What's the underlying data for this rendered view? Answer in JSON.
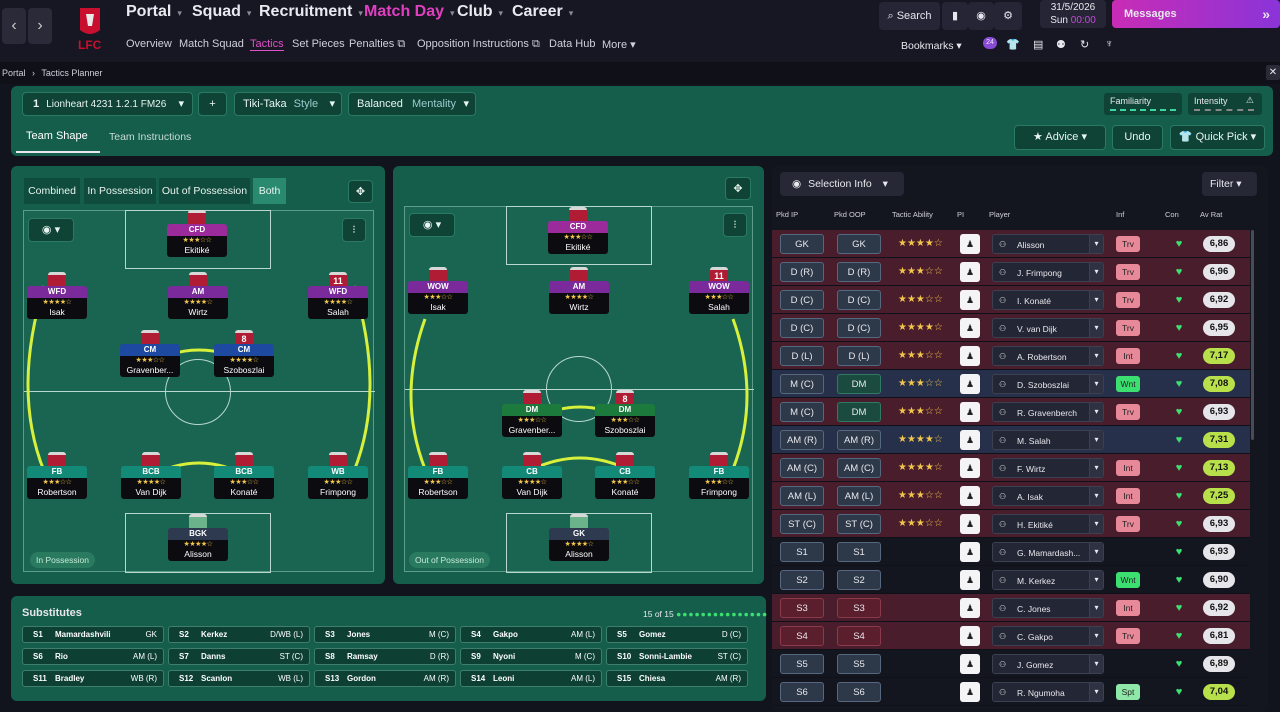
{
  "topnav": {
    "main": [
      "Portal",
      "Squad",
      "Recruitment",
      "Match Day",
      "Club",
      "Career"
    ],
    "sub": [
      "Overview",
      "Match Squad",
      "Tactics",
      "Set Pieces",
      "Penalties",
      "Opposition Instructions",
      "Data Hub",
      "More"
    ],
    "search": "Search",
    "date": "31/5/2026",
    "day": "Sun",
    "time": "00:00",
    "messages": "Messages",
    "bookmarks": "Bookmarks",
    "club_badge": "LFC"
  },
  "breadcrumb": [
    "Portal",
    "Tactics Planner"
  ],
  "tactic": {
    "slot": "1",
    "name": "Lionheart 4231 1.2.1 FM26",
    "style_value": "Tiki-Taka",
    "style_label": "Style",
    "mentality_value": "Balanced",
    "mentality_label": "Mentality",
    "familiarity": "Familiarity",
    "intensity": "Intensity"
  },
  "tabs": [
    "Team Shape",
    "Team Instructions"
  ],
  "actions": {
    "advice": "Advice",
    "undo": "Undo",
    "quick_pick": "Quick Pick"
  },
  "view_modes": [
    "Combined",
    "In Possession",
    "Out of Possession",
    "Both"
  ],
  "pitch_labels": {
    "in": "In Possession",
    "out": "Out of Possession"
  },
  "in_possession": [
    {
      "role": "CFD",
      "stars": "★★★☆☆",
      "name": "Ekitiké",
      "num": "",
      "color": "#9b2a9b"
    },
    {
      "role": "WFD",
      "stars": "★★★★☆",
      "name": "Isak",
      "num": "",
      "color": "#7a2a9b"
    },
    {
      "role": "AM",
      "stars": "★★★★☆",
      "name": "Wirtz",
      "num": "",
      "color": "#7a2a9b"
    },
    {
      "role": "WFD",
      "stars": "★★★★☆",
      "name": "Salah",
      "num": "11",
      "color": "#7a2a9b"
    },
    {
      "role": "CM",
      "stars": "★★★☆☆",
      "name": "Gravenber...",
      "num": "",
      "color": "#1d4aa0"
    },
    {
      "role": "CM",
      "stars": "★★★★☆",
      "name": "Szoboszlai",
      "num": "8",
      "color": "#1d4aa0"
    },
    {
      "role": "FB",
      "stars": "★★★☆☆",
      "name": "Robertson",
      "num": "",
      "color": "#138a78"
    },
    {
      "role": "BCB",
      "stars": "★★★★☆",
      "name": "Van Dijk",
      "num": "",
      "color": "#138a78"
    },
    {
      "role": "BCB",
      "stars": "★★★☆☆",
      "name": "Konaté",
      "num": "",
      "color": "#138a78"
    },
    {
      "role": "WB",
      "stars": "★★★☆☆",
      "name": "Frimpong",
      "num": "",
      "color": "#138a78"
    },
    {
      "role": "BGK",
      "stars": "★★★★☆",
      "name": "Alisson",
      "num": "",
      "color": "#2d3a4f"
    }
  ],
  "out_possession": [
    {
      "role": "CFD",
      "stars": "★★★☆☆",
      "name": "Ekitiké",
      "num": "",
      "color": "#9b2a9b"
    },
    {
      "role": "WOW",
      "stars": "★★★☆☆",
      "name": "Isak",
      "num": "",
      "color": "#7a2a9b"
    },
    {
      "role": "AM",
      "stars": "★★★★☆",
      "name": "Wirtz",
      "num": "",
      "color": "#7a2a9b"
    },
    {
      "role": "WOW",
      "stars": "★★★☆☆",
      "name": "Salah",
      "num": "11",
      "color": "#7a2a9b"
    },
    {
      "role": "DM",
      "stars": "★★★☆☆",
      "name": "Gravenber...",
      "num": "",
      "color": "#1b7a3c"
    },
    {
      "role": "DM",
      "stars": "★★★☆☆",
      "name": "Szoboszlai",
      "num": "8",
      "color": "#1b7a3c"
    },
    {
      "role": "FB",
      "stars": "★★★☆☆",
      "name": "Robertson",
      "num": "",
      "color": "#138a78"
    },
    {
      "role": "CB",
      "stars": "★★★★☆",
      "name": "Van Dijk",
      "num": "",
      "color": "#138a78"
    },
    {
      "role": "CB",
      "stars": "★★★☆☆",
      "name": "Konaté",
      "num": "",
      "color": "#138a78"
    },
    {
      "role": "FB",
      "stars": "★★★☆☆",
      "name": "Frimpong",
      "num": "",
      "color": "#138a78"
    },
    {
      "role": "GK",
      "stars": "★★★★☆",
      "name": "Alisson",
      "num": "",
      "color": "#2d3a4f"
    }
  ],
  "subs_title": "Substitutes",
  "subs_count": "15 of 15",
  "subs": [
    {
      "id": "S1",
      "name": "Mamardashvili",
      "pos": "GK"
    },
    {
      "id": "S2",
      "name": "Kerkez",
      "pos": "D/WB (L)"
    },
    {
      "id": "S3",
      "name": "Jones",
      "pos": "M (C)"
    },
    {
      "id": "S4",
      "name": "Gakpo",
      "pos": "AM (L)"
    },
    {
      "id": "S5",
      "name": "Gomez",
      "pos": "D (C)"
    },
    {
      "id": "S6",
      "name": "Rio",
      "pos": "AM (L)"
    },
    {
      "id": "S7",
      "name": "Danns",
      "pos": "ST (C)"
    },
    {
      "id": "S8",
      "name": "Ramsay",
      "pos": "D (R)"
    },
    {
      "id": "S9",
      "name": "Nyoni",
      "pos": "M (C)"
    },
    {
      "id": "S10",
      "name": "Sonni-Lambie",
      "pos": "ST (C)"
    },
    {
      "id": "S11",
      "name": "Bradley",
      "pos": "WB (R)"
    },
    {
      "id": "S12",
      "name": "Scanlon",
      "pos": "WB (L)"
    },
    {
      "id": "S13",
      "name": "Gordon",
      "pos": "AM (R)"
    },
    {
      "id": "S14",
      "name": "Leoni",
      "pos": "AM (L)"
    },
    {
      "id": "S15",
      "name": "Chiesa",
      "pos": "AM (R)"
    }
  ],
  "selection": {
    "title": "Selection Info",
    "filter": "Filter",
    "headers": [
      "Pkd IP",
      "Pkd OOP",
      "Tactic Ability",
      "PI",
      "Player",
      "Inf",
      "Con",
      "Av Rat"
    ]
  },
  "rows": [
    {
      "ip": "GK",
      "oop": "GK",
      "ta": "★★★★☆",
      "player": "Alisson",
      "inf": "Trv",
      "rat": "6,86",
      "bg": "#4a1d2c"
    },
    {
      "ip": "D (R)",
      "oop": "D (R)",
      "ta": "★★★☆☆",
      "player": "J. Frimpong",
      "inf": "Trv",
      "rat": "6,96",
      "bg": "#4a1d2c"
    },
    {
      "ip": "D (C)",
      "oop": "D (C)",
      "ta": "★★★☆☆",
      "player": "I. Konaté",
      "inf": "Trv",
      "rat": "6,92",
      "bg": "#4a1d2c"
    },
    {
      "ip": "D (C)",
      "oop": "D (C)",
      "ta": "★★★★☆",
      "player": "V. van Dijk",
      "inf": "Trv",
      "rat": "6,95",
      "bg": "#4a1d2c"
    },
    {
      "ip": "D (L)",
      "oop": "D (L)",
      "ta": "★★★☆☆",
      "player": "A. Robertson",
      "inf": "Int",
      "rat": "7,17",
      "bg": "#4a1d2c"
    },
    {
      "ip": "M (C)",
      "oop": "DM",
      "ta": "★★★☆☆",
      "player": "D. Szoboszlai",
      "inf": "Wnt",
      "rat": "7,08",
      "bg": "#27304a"
    },
    {
      "ip": "M (C)",
      "oop": "DM",
      "ta": "★★★☆☆",
      "player": "R. Gravenberch",
      "inf": "Trv",
      "rat": "6,93",
      "bg": "#4a1d2c"
    },
    {
      "ip": "AM (R)",
      "oop": "AM (R)",
      "ta": "★★★★☆",
      "player": "M. Salah",
      "inf": "",
      "rat": "7,31",
      "bg": "#27304a"
    },
    {
      "ip": "AM (C)",
      "oop": "AM (C)",
      "ta": "★★★★☆",
      "player": "F. Wirtz",
      "inf": "Int",
      "rat": "7,13",
      "bg": "#4a1d2c"
    },
    {
      "ip": "AM (L)",
      "oop": "AM (L)",
      "ta": "★★★☆☆",
      "player": "A. Isak",
      "inf": "Int",
      "rat": "7,25",
      "bg": "#4a1d2c"
    },
    {
      "ip": "ST (C)",
      "oop": "ST (C)",
      "ta": "★★★☆☆",
      "player": "H. Ekitiké",
      "inf": "Trv",
      "rat": "6,93",
      "bg": "#4a1d2c"
    },
    {
      "ip": "S1",
      "oop": "S1",
      "ta": "",
      "player": "G. Mamardash...",
      "inf": "",
      "rat": "6,93",
      "bg": "#14161f"
    },
    {
      "ip": "S2",
      "oop": "S2",
      "ta": "",
      "player": "M. Kerkez",
      "inf": "Wnt",
      "rat": "6,90",
      "bg": "#14161f"
    },
    {
      "ip": "S3",
      "oop": "S3",
      "ta": "",
      "player": "C. Jones",
      "inf": "Int",
      "rat": "6,92",
      "bg": "#4a1d2c"
    },
    {
      "ip": "S4",
      "oop": "S4",
      "ta": "",
      "player": "C. Gakpo",
      "inf": "Trv",
      "rat": "6,81",
      "bg": "#4a1d2c"
    },
    {
      "ip": "S5",
      "oop": "S5",
      "ta": "",
      "player": "J. Gomez",
      "inf": "",
      "rat": "6,89",
      "bg": "#14161f"
    },
    {
      "ip": "S6",
      "oop": "S6",
      "ta": "",
      "player": "R. Ngumoha",
      "inf": "Spt",
      "rat": "7,04",
      "bg": "#14161f"
    }
  ]
}
